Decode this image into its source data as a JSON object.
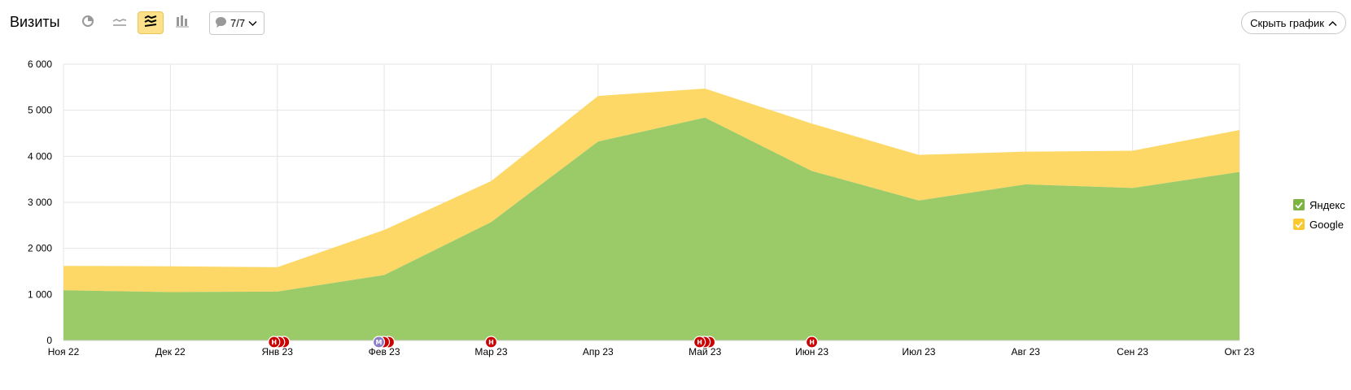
{
  "toolbar": {
    "title": "Визиты",
    "notes_label": "7/7",
    "hide_chart_label": "Скрыть график"
  },
  "colors": {
    "yandex": "#9bcb68",
    "google": "#fdd866",
    "note_red": "#cc0000",
    "note_purple": "#8a7fc7",
    "active_button": "#fce18a"
  },
  "chart_data": {
    "type": "area",
    "stacked": true,
    "title": "Визиты",
    "categories": [
      "Ноя 22",
      "Дек 22",
      "Янв 23",
      "Фев 23",
      "Мар 23",
      "Апр 23",
      "Май 23",
      "Июн 23",
      "Июл 23",
      "Авг 23",
      "Сен 23",
      "Окт 23"
    ],
    "series": [
      {
        "name": "Яндекс",
        "color": "#9bcb68",
        "values": [
          1090,
          1050,
          1060,
          1420,
          2570,
          4320,
          4840,
          3680,
          3040,
          3390,
          3310,
          3660
        ]
      },
      {
        "name": "Google",
        "color": "#fdd866",
        "values": [
          530,
          560,
          530,
          980,
          890,
          990,
          630,
          1030,
          990,
          710,
          810,
          910
        ]
      }
    ],
    "ylim": [
      0,
      6000
    ],
    "yticks": [
      0,
      1000,
      2000,
      3000,
      4000,
      5000,
      6000
    ],
    "ytick_labels": [
      "0",
      "1 000",
      "2 000",
      "3 000",
      "4 000",
      "5 000",
      "6 000"
    ],
    "grid": true,
    "legend": "right",
    "note_markers": [
      {
        "x": 1.97,
        "label": "Н",
        "kind": "red",
        "stack": 3
      },
      {
        "x": 2.95,
        "label": "М",
        "kind": "purple",
        "stack": 3
      },
      {
        "x": 4.0,
        "label": "Н",
        "kind": "red",
        "stack": 1
      },
      {
        "x": 5.95,
        "label": "Н",
        "kind": "red",
        "stack": 3
      },
      {
        "x": 7.0,
        "label": "Н",
        "kind": "red",
        "stack": 1
      }
    ]
  }
}
